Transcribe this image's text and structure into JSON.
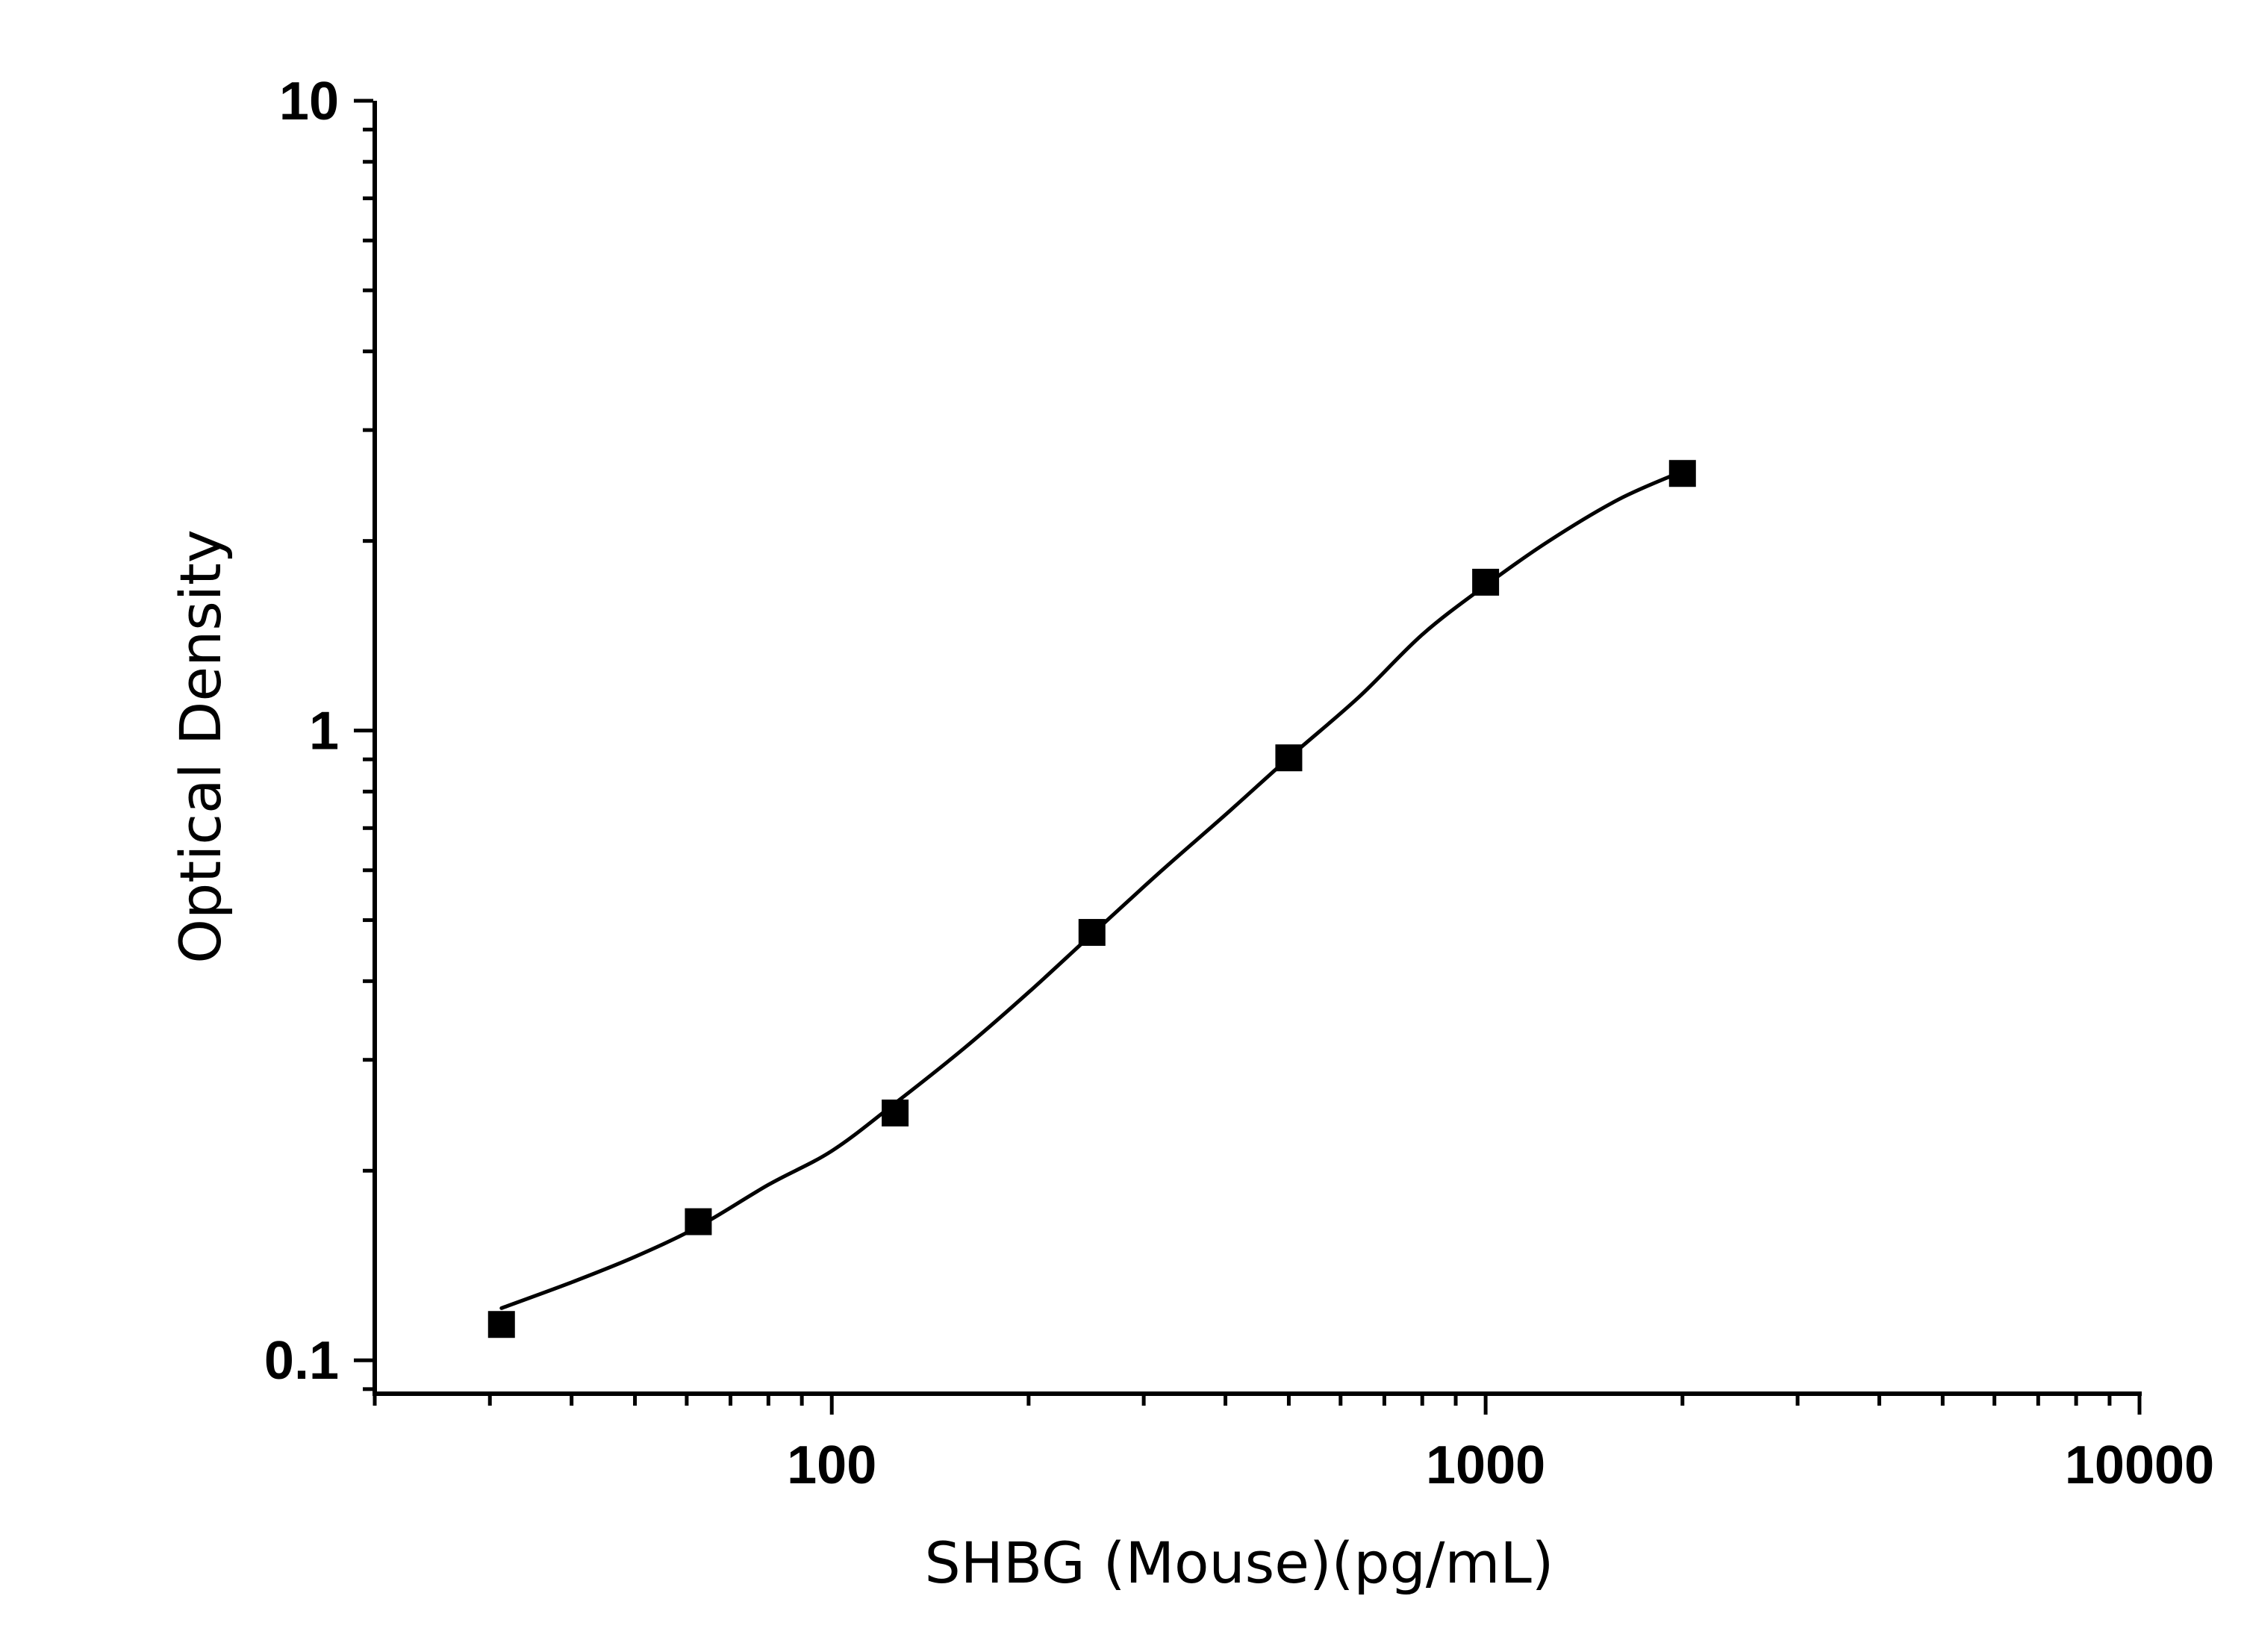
{
  "chart_data": {
    "type": "scatter",
    "title": "",
    "xlabel": "SHBG (Mouse)(pg/mL)",
    "ylabel": "Optical Density",
    "x_scale": "log",
    "y_scale": "log",
    "xlim": [
      20,
      10000
    ],
    "ylim": [
      0.0885,
      10
    ],
    "grid": false,
    "legend": "none",
    "x_ticks": [
      {
        "value": 100,
        "label": "100"
      },
      {
        "value": 1000,
        "label": "1000"
      },
      {
        "value": 10000,
        "label": "10000"
      }
    ],
    "y_ticks": [
      {
        "value": 0.1,
        "label": "0.1"
      },
      {
        "value": 1,
        "label": "1"
      },
      {
        "value": 10,
        "label": "10"
      }
    ],
    "series": [
      {
        "marker": "square",
        "color": "#000000",
        "points": [
          {
            "x": 31.25,
            "y": 0.114
          },
          {
            "x": 62.5,
            "y": 0.166
          },
          {
            "x": 125,
            "y": 0.247
          },
          {
            "x": 250,
            "y": 0.478
          },
          {
            "x": 500,
            "y": 0.905
          },
          {
            "x": 1000,
            "y": 1.72
          },
          {
            "x": 2000,
            "y": 2.56
          }
        ]
      }
    ],
    "fit_curve": {
      "type": "4PL",
      "color": "#000000",
      "x_range": [
        31.25,
        2000
      ],
      "samples": [
        {
          "x": 31.25,
          "y": 0.121
        },
        {
          "x": 40,
          "y": 0.133
        },
        {
          "x": 50,
          "y": 0.146
        },
        {
          "x": 62.5,
          "y": 0.163
        },
        {
          "x": 80,
          "y": 0.19
        },
        {
          "x": 100,
          "y": 0.215
        },
        {
          "x": 125,
          "y": 0.256
        },
        {
          "x": 160,
          "y": 0.314
        },
        {
          "x": 200,
          "y": 0.384
        },
        {
          "x": 250,
          "y": 0.475
        },
        {
          "x": 320,
          "y": 0.6
        },
        {
          "x": 400,
          "y": 0.735
        },
        {
          "x": 500,
          "y": 0.905
        },
        {
          "x": 640,
          "y": 1.13
        },
        {
          "x": 800,
          "y": 1.42
        },
        {
          "x": 1000,
          "y": 1.7
        },
        {
          "x": 1250,
          "y": 2.0
        },
        {
          "x": 1600,
          "y": 2.33
        },
        {
          "x": 2000,
          "y": 2.58
        }
      ]
    }
  }
}
